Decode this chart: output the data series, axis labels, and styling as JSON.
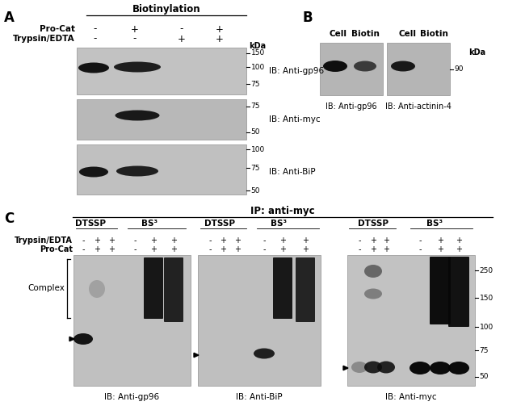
{
  "bg": "#ffffff",
  "panel_bg_A1": "#c2c2c2",
  "panel_bg_A2": "#b8b8b8",
  "panel_bg_A3": "#c0c0c0",
  "panel_bg_B": "#b5b5b5",
  "panel_bg_C1": "#c0c0c0",
  "panel_bg_C2": "#bfbfbf",
  "panel_bg_C3": "#c2c2c2",
  "label_A": "A",
  "label_B": "B",
  "label_C": "C",
  "biotinylation": "Biotinylation",
  "ip_antimyc": "IP: anti-myc",
  "pro_cat": "Pro-Cat",
  "trypsin_edta": "Trypsin/EDTA",
  "kda": "kDa",
  "ib_gp96_A": "IB: Anti-gp96",
  "ib_myc_A": "IB: Anti-myc",
  "ib_bip_A": "IB: Anti-BiP",
  "ib_gp96_B": "IB: Anti-gp96",
  "ib_actinin_B": "IB: Anti-actinin-4",
  "ib_gp96_C": "IB: Anti-gp96",
  "ib_bip_C": "IB: Anti-BiP",
  "ib_myc_C": "IB: Anti-myc",
  "complex": "Complex",
  "cell": "Cell",
  "biotin": "Biotin",
  "dtssp": "DTSSP",
  "bs3": "BS³",
  "mw_A1": [
    [
      "150",
      0.12
    ],
    [
      "100",
      0.42
    ],
    [
      "75",
      0.78
    ]
  ],
  "mw_A2": [
    [
      "75",
      0.18
    ],
    [
      "50",
      0.82
    ]
  ],
  "mw_A3": [
    [
      "100",
      0.1
    ],
    [
      "75",
      0.47
    ],
    [
      "50",
      0.92
    ]
  ],
  "mw_B": [
    [
      "90",
      0.5
    ]
  ],
  "mw_C": [
    [
      "250",
      0.12
    ],
    [
      "150",
      0.33
    ],
    [
      "100",
      0.55
    ],
    [
      "75",
      0.73
    ],
    [
      "50",
      0.93
    ]
  ]
}
